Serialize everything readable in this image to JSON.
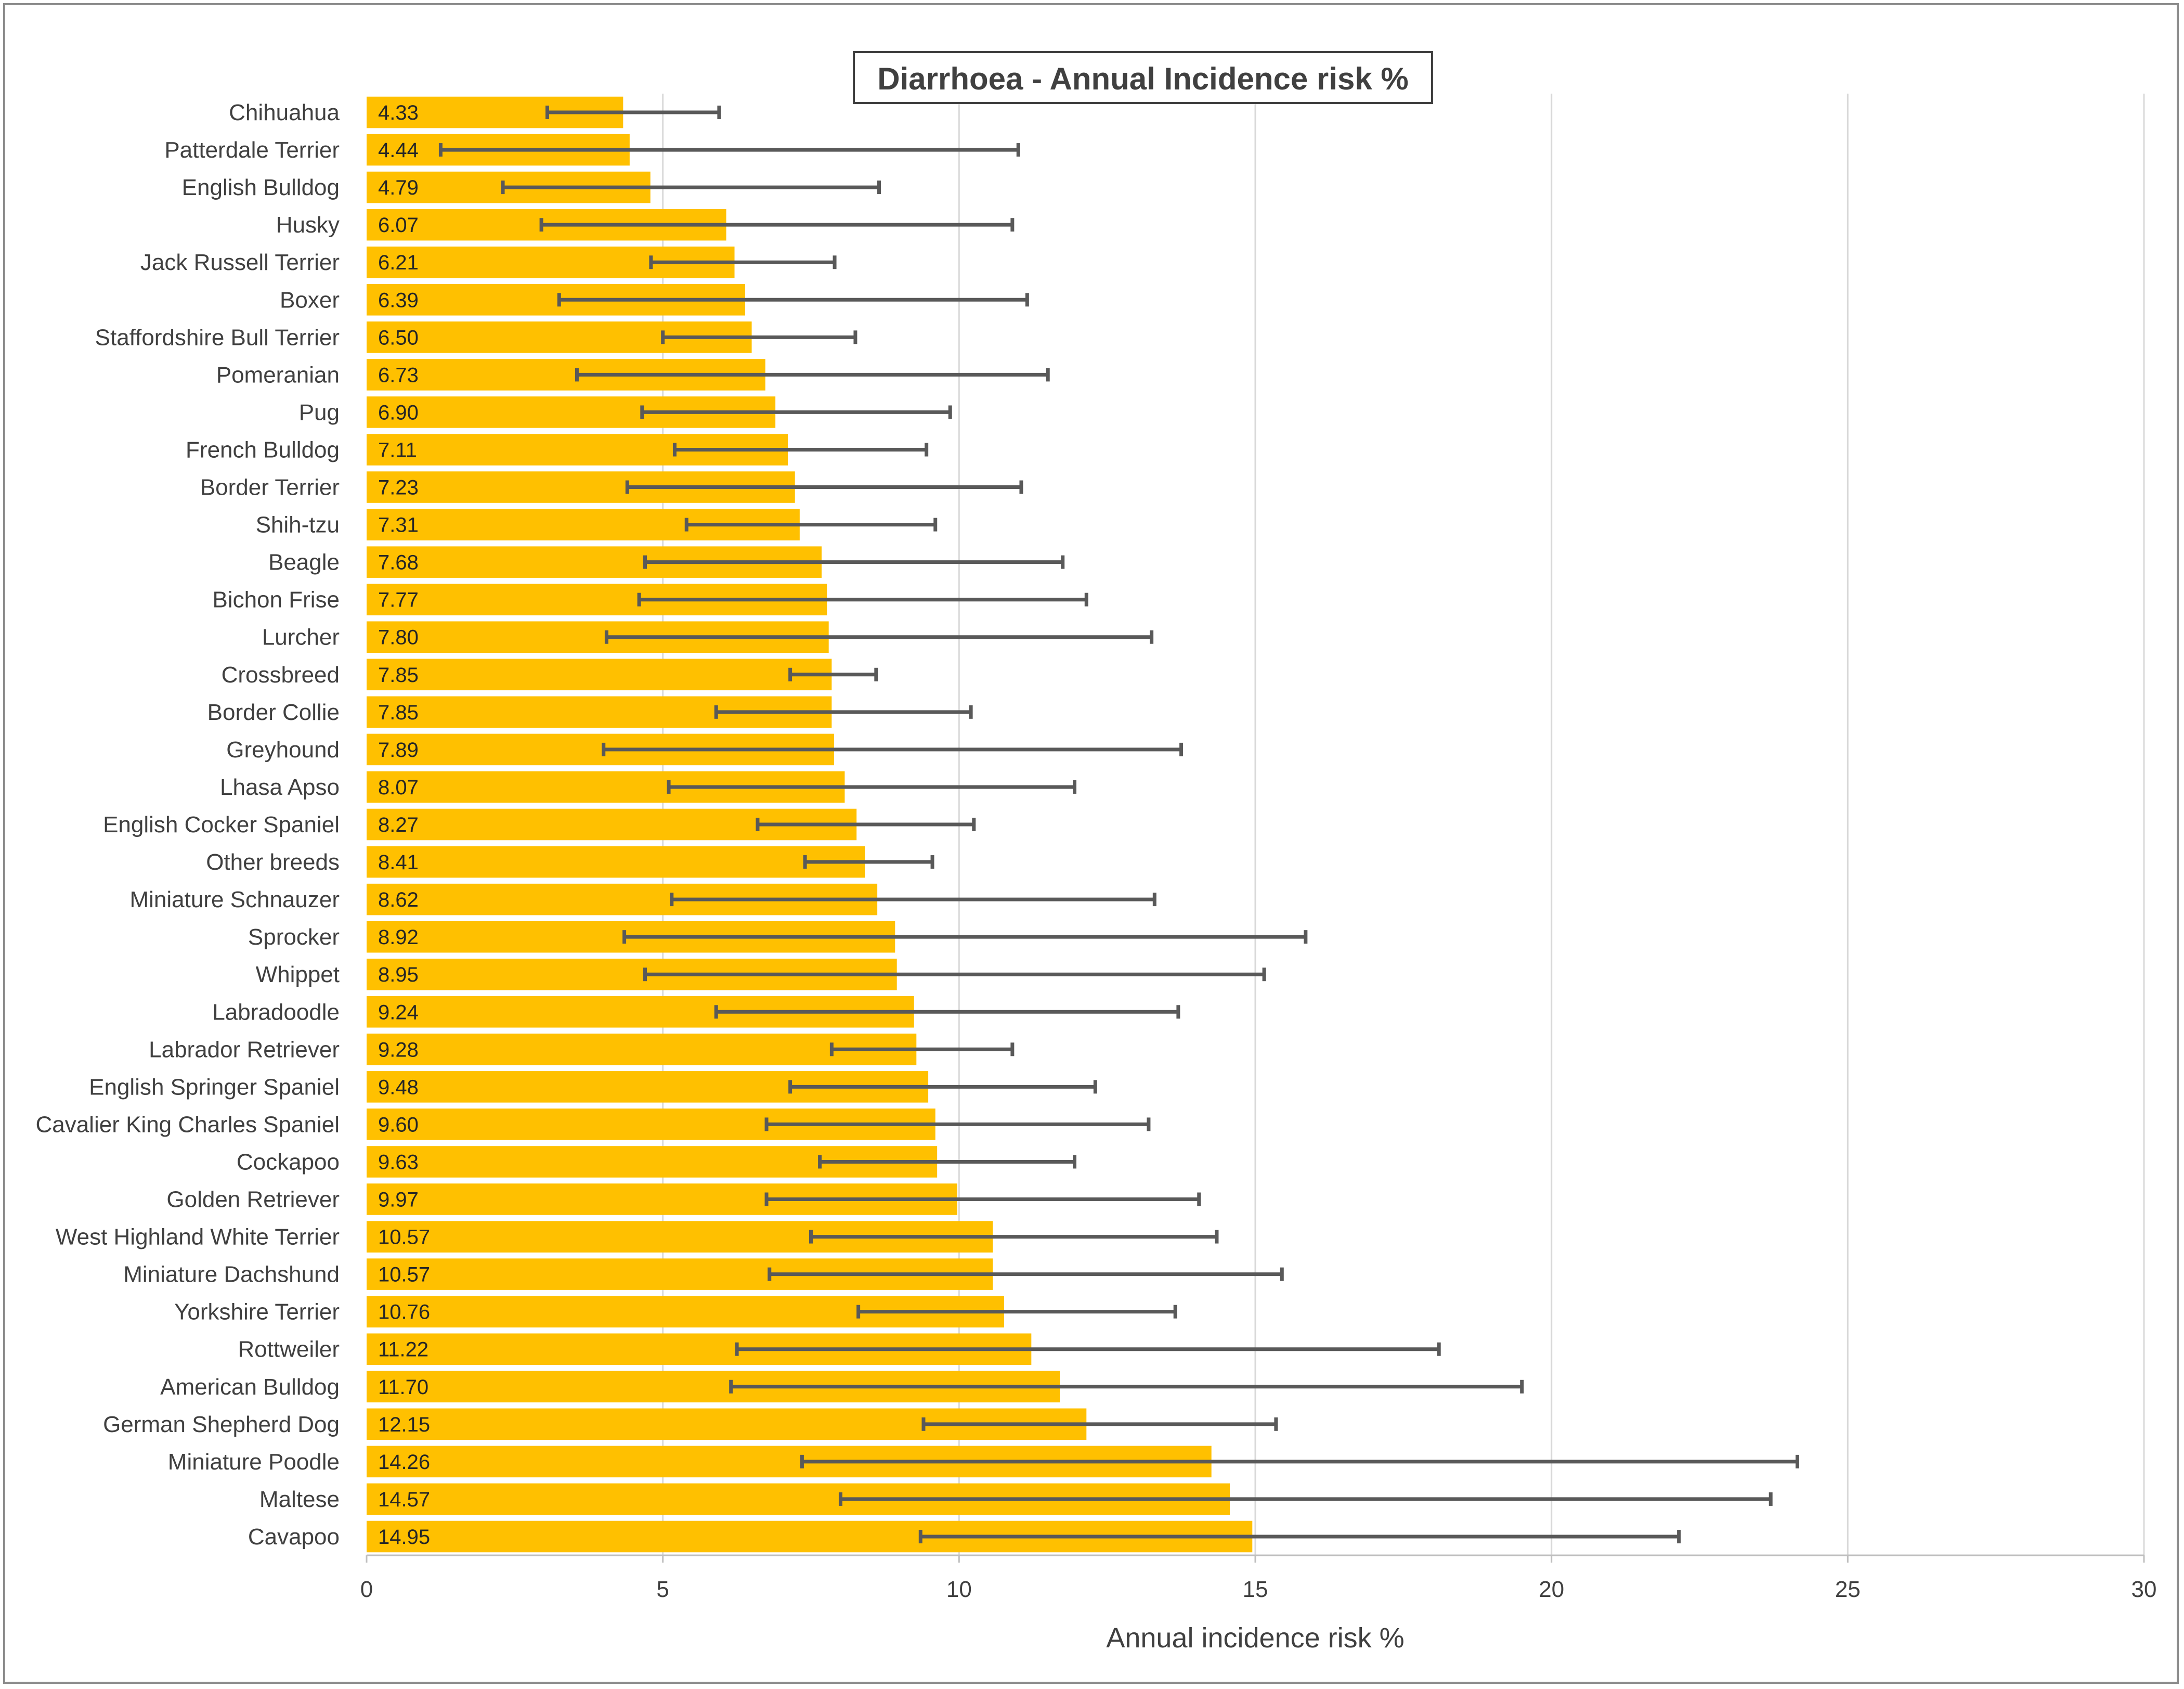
{
  "chart_data": {
    "type": "bar",
    "orientation": "horizontal",
    "title": "Diarrhoea - Annual Incidence risk %",
    "xlabel": "Annual incidence risk %",
    "ylabel": "",
    "xlim": [
      0,
      30
    ],
    "xticks": [
      "0",
      "5",
      "10",
      "15",
      "20",
      "25",
      "30"
    ],
    "grid": "vertical",
    "bar_color": "#FFC000",
    "error_bar_color": "#595959",
    "categories": [
      "Chihuahua",
      "Patterdale Terrier",
      "English Bulldog",
      "Husky",
      "Jack Russell Terrier",
      "Boxer",
      "Staffordshire Bull Terrier",
      "Pomeranian",
      "Pug",
      "French Bulldog",
      "Border Terrier",
      "Shih-tzu",
      "Beagle",
      "Bichon Frise",
      "Lurcher",
      "Crossbreed",
      "Border Collie",
      "Greyhound",
      "Lhasa Apso",
      "English Cocker Spaniel",
      "Other breeds",
      "Miniature Schnauzer",
      "Sprocker",
      "Whippet",
      "Labradoodle",
      "Labrador Retriever",
      "English Springer Spaniel",
      "Cavalier King Charles Spaniel",
      "Cockapoo",
      "Golden Retriever",
      "West Highland White Terrier",
      "Miniature Dachshund",
      "Yorkshire Terrier",
      "Rottweiler",
      "American Bulldog",
      "German Shepherd Dog",
      "Miniature Poodle",
      "Maltese",
      "Cavapoo"
    ],
    "values": [
      4.33,
      4.44,
      4.79,
      6.07,
      6.21,
      6.39,
      6.5,
      6.73,
      6.9,
      7.11,
      7.23,
      7.31,
      7.68,
      7.77,
      7.8,
      7.85,
      7.85,
      7.89,
      8.07,
      8.27,
      8.41,
      8.62,
      8.92,
      8.95,
      9.24,
      9.28,
      9.48,
      9.6,
      9.63,
      9.97,
      10.57,
      10.57,
      10.76,
      11.22,
      11.7,
      12.15,
      14.26,
      14.57,
      14.95
    ],
    "value_labels": [
      "4.33",
      "4.44",
      "4.79",
      "6.07",
      "6.21",
      "6.39",
      "6.50",
      "6.73",
      "6.90",
      "7.11",
      "7.23",
      "7.31",
      "7.68",
      "7.77",
      "7.80",
      "7.85",
      "7.85",
      "7.89",
      "8.07",
      "8.27",
      "8.41",
      "8.62",
      "8.92",
      "8.95",
      "9.24",
      "9.28",
      "9.48",
      "9.60",
      "9.63",
      "9.97",
      "10.57",
      "10.57",
      "10.76",
      "11.22",
      "11.70",
      "12.15",
      "14.26",
      "14.57",
      "14.95"
    ],
    "ci_lower": [
      3.05,
      1.25,
      2.3,
      2.95,
      4.8,
      3.25,
      5.0,
      3.55,
      4.65,
      5.2,
      4.4,
      5.4,
      4.7,
      4.6,
      4.05,
      7.15,
      5.9,
      4.0,
      5.1,
      6.6,
      7.4,
      5.15,
      4.35,
      4.7,
      5.9,
      7.85,
      7.15,
      6.75,
      7.65,
      6.75,
      7.5,
      6.8,
      8.3,
      6.25,
      6.15,
      9.4,
      7.35,
      8.0,
      9.35
    ],
    "ci_upper": [
      5.95,
      11.0,
      8.65,
      10.9,
      7.9,
      11.15,
      8.25,
      11.5,
      9.85,
      9.45,
      11.05,
      9.6,
      11.75,
      12.15,
      13.25,
      8.6,
      10.2,
      13.75,
      11.95,
      10.25,
      9.55,
      13.3,
      15.85,
      15.15,
      13.7,
      10.9,
      12.3,
      13.2,
      11.95,
      14.05,
      14.35,
      15.45,
      13.65,
      18.1,
      19.5,
      15.35,
      24.15,
      23.7,
      22.15
    ]
  }
}
